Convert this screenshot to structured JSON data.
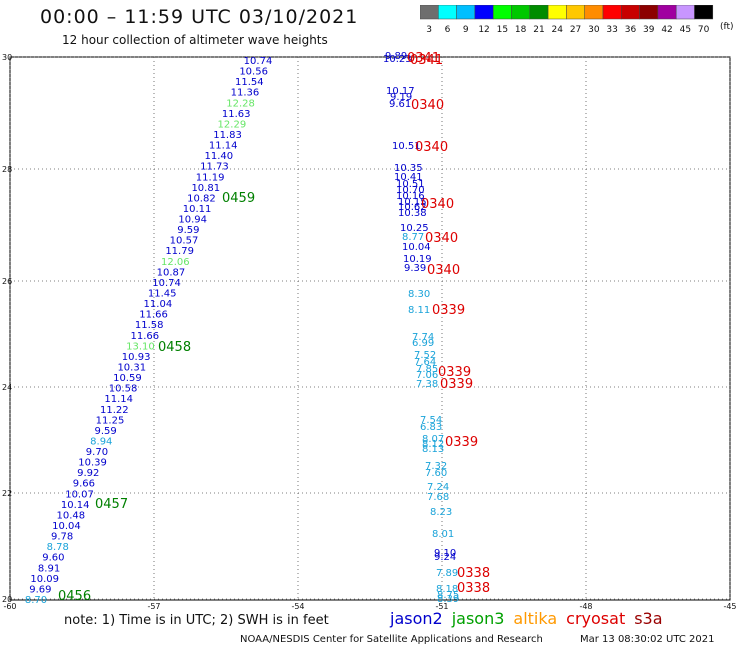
{
  "header": {
    "title": "00:00 – 11:59 UTC 03/10/2021",
    "subtitle": "12 hour collection of altimeter wave heights",
    "units": "(ft)"
  },
  "color_scale": {
    "labels": [
      "3",
      "6",
      "9",
      "12",
      "15",
      "18",
      "21",
      "24",
      "27",
      "30",
      "33",
      "36",
      "39",
      "42",
      "45",
      "70"
    ],
    "colors": [
      "#6e6e6e",
      "#00ffff",
      "#00bfff",
      "#0000ff",
      "#00ff00",
      "#00c800",
      "#008c00",
      "#ffff00",
      "#ffc800",
      "#ff8c00",
      "#ff0000",
      "#c80000",
      "#8c0000",
      "#a000a0",
      "#c896ff",
      "#000000"
    ]
  },
  "map": {
    "lat_labels": [
      "30",
      "28",
      "26",
      "24",
      "22",
      "20"
    ],
    "lon_labels": [
      "-60",
      "-57",
      "-54",
      "-51",
      "-48",
      "-45"
    ]
  },
  "track_left": {
    "values": [
      "10.74",
      "10.56",
      "11.54",
      "11.36",
      "12.28",
      "11.63",
      "12.29",
      "11.83",
      "11.14",
      "11.40",
      "11.73",
      "11.19",
      "10.81",
      "10.82",
      "10.11",
      "10.94",
      "9.59",
      "10.57",
      "11.79",
      "12.06",
      "10.87",
      "10.74",
      "11.45",
      "11.04",
      "11.66",
      "11.58",
      "11.66",
      "13.10",
      "10.93",
      "10.31",
      "10.59",
      "10.58",
      "11.14",
      "11.22",
      "11.25",
      "9.59",
      "8.94",
      "9.70",
      "10.39",
      "9.92",
      "9.66",
      "10.07",
      "10.14",
      "10.48",
      "10.04",
      "9.78",
      "8.78",
      "9.60",
      "8.91",
      "10.09",
      "9.69",
      "8.70"
    ],
    "colors": [
      "#0000cc",
      "#0000cc",
      "#0000cc",
      "#0000cc",
      "#66e666",
      "#0000cc",
      "#66e666",
      "#0000cc",
      "#0000cc",
      "#0000cc",
      "#0000cc",
      "#0000cc",
      "#0000cc",
      "#0000cc",
      "#0000cc",
      "#0000cc",
      "#0000cc",
      "#0000cc",
      "#0000cc",
      "#66e666",
      "#0000cc",
      "#0000cc",
      "#0000cc",
      "#0000cc",
      "#0000cc",
      "#0000cc",
      "#0000cc",
      "#66e666",
      "#0000cc",
      "#0000cc",
      "#0000cc",
      "#0000cc",
      "#0000cc",
      "#0000cc",
      "#0000cc",
      "#0000cc",
      "#1aa3d9",
      "#0000cc",
      "#0000cc",
      "#0000cc",
      "#0000cc",
      "#0000cc",
      "#0000cc",
      "#0000cc",
      "#0000cc",
      "#0000cc",
      "#1aa3d9",
      "#0000cc",
      "#0000cc",
      "#0000cc",
      "#0000cc",
      "#1aa3d9"
    ],
    "times": [
      "0459",
      "0458",
      "0457",
      "0456"
    ],
    "time_color": "#008000"
  },
  "track_right": {
    "values": [
      {
        "v": "9.89",
        "c": "#0000cc"
      },
      {
        "v": "10.23",
        "c": "#0000cc"
      },
      {
        "v": "10.17",
        "c": "#0000cc"
      },
      {
        "v": "9.19",
        "c": "#0000cc"
      },
      {
        "v": "9.61",
        "c": "#0000cc"
      },
      {
        "v": "10.51",
        "c": "#0000cc"
      },
      {
        "v": "10.35",
        "c": "#0000cc"
      },
      {
        "v": "10.41",
        "c": "#0000cc"
      },
      {
        "v": "10.51",
        "c": "#0000cc"
      },
      {
        "v": "10.70",
        "c": "#0000cc"
      },
      {
        "v": "10.16",
        "c": "#0000cc"
      },
      {
        "v": "10.15",
        "c": "#0000cc"
      },
      {
        "v": "10.62",
        "c": "#0000cc"
      },
      {
        "v": "10.38",
        "c": "#0000cc"
      },
      {
        "v": "10.25",
        "c": "#0000cc"
      },
      {
        "v": "8.77",
        "c": "#1aa3d9"
      },
      {
        "v": "10.04",
        "c": "#0000cc"
      },
      {
        "v": "10.19",
        "c": "#0000cc"
      },
      {
        "v": "9.39",
        "c": "#0000cc"
      },
      {
        "v": "8.30",
        "c": "#1aa3d9"
      },
      {
        "v": "8.11",
        "c": "#1aa3d9"
      },
      {
        "v": "7.74",
        "c": "#1aa3d9"
      },
      {
        "v": "6.99",
        "c": "#1aa3d9"
      },
      {
        "v": "7.52",
        "c": "#1aa3d9"
      },
      {
        "v": "7.64",
        "c": "#1aa3d9"
      },
      {
        "v": "7.85",
        "c": "#1aa3d9"
      },
      {
        "v": "7.06",
        "c": "#1aa3d9"
      },
      {
        "v": "7.38",
        "c": "#1aa3d9"
      },
      {
        "v": "7.54",
        "c": "#1aa3d9"
      },
      {
        "v": "6.83",
        "c": "#1aa3d9"
      },
      {
        "v": "8.07",
        "c": "#1aa3d9"
      },
      {
        "v": "8.12",
        "c": "#1aa3d9"
      },
      {
        "v": "8.13",
        "c": "#1aa3d9"
      },
      {
        "v": "7.32",
        "c": "#1aa3d9"
      },
      {
        "v": "7.60",
        "c": "#1aa3d9"
      },
      {
        "v": "7.24",
        "c": "#1aa3d9"
      },
      {
        "v": "7.68",
        "c": "#1aa3d9"
      },
      {
        "v": "8.23",
        "c": "#1aa3d9"
      },
      {
        "v": "8.01",
        "c": "#1aa3d9"
      },
      {
        "v": "9.10",
        "c": "#0000cc"
      },
      {
        "v": "9.24",
        "c": "#0000cc"
      },
      {
        "v": "7.89",
        "c": "#1aa3d9"
      },
      {
        "v": "8.18",
        "c": "#1aa3d9"
      },
      {
        "v": "8.75",
        "c": "#1aa3d9"
      },
      {
        "v": "8.39",
        "c": "#1aa3d9"
      }
    ],
    "times": [
      "0341",
      "0341",
      "0340",
      "0340",
      "0340",
      "0340",
      "0340",
      "0339",
      "0339",
      "0339",
      "0339",
      "0338",
      "0338"
    ],
    "time_color": "#dd0000"
  },
  "footer": {
    "note": "note:  1) Time is in UTC;  2) SWH is in feet",
    "credit": "NOAA/NESDIS Center for Satellite Applications and Research",
    "timestamp": "Mar 13 08:30:02 UTC 2021",
    "legend": [
      {
        "label": "jason2",
        "color": "#0000cc"
      },
      {
        "label": "jason3",
        "color": "#00a000"
      },
      {
        "label": "altika",
        "color": "#ff9900"
      },
      {
        "label": "cryosat",
        "color": "#dd0000"
      },
      {
        "label": "s3a",
        "color": "#990000"
      }
    ]
  }
}
